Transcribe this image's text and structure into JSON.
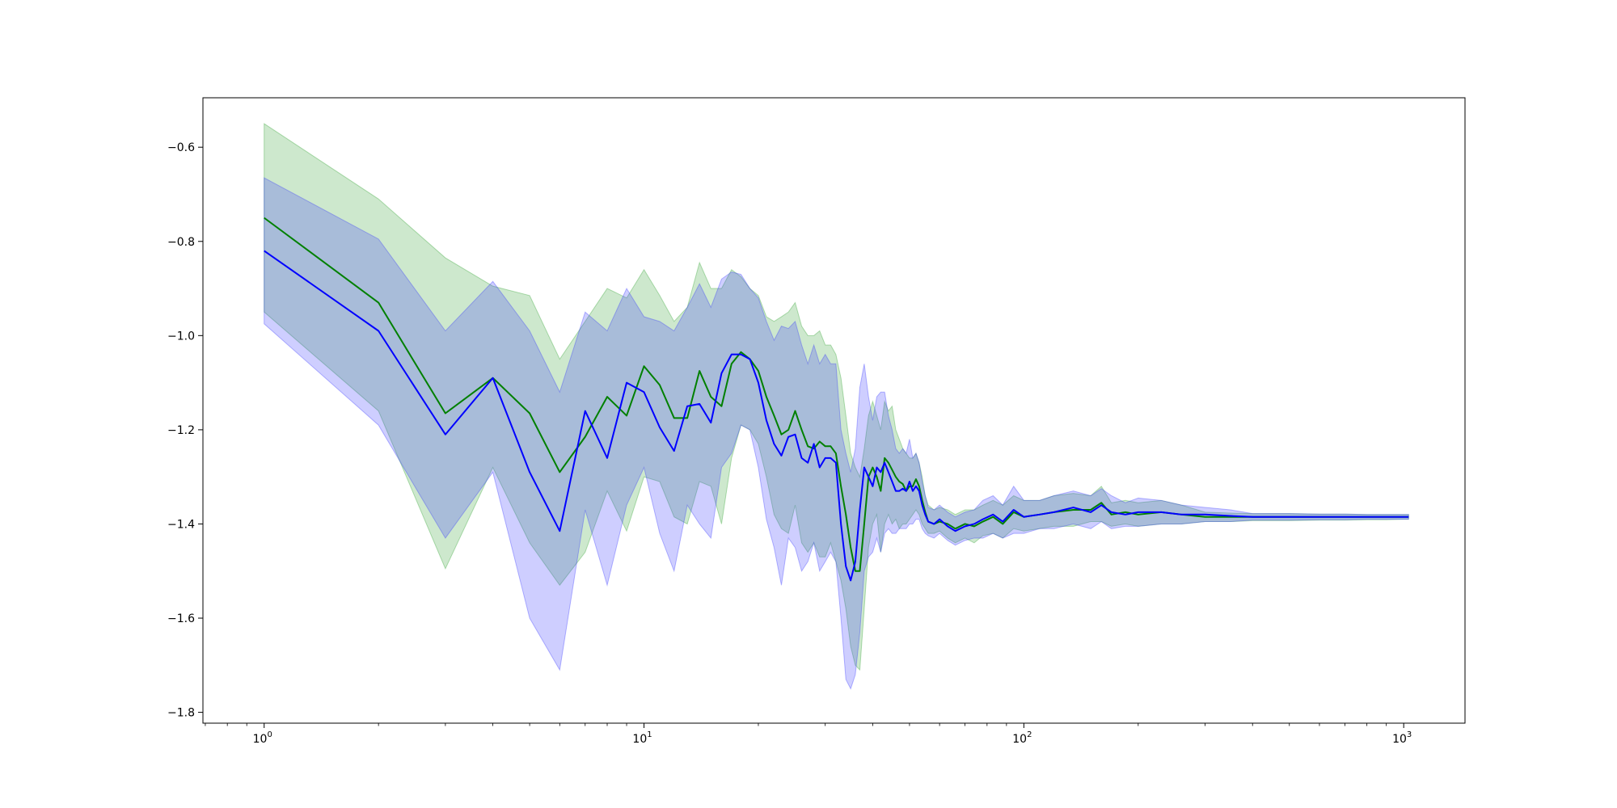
{
  "chart_data": {
    "type": "line",
    "title": "",
    "xlabel": "",
    "ylabel": "",
    "xscale": "log",
    "xlim": [
      0.69,
      1450
    ],
    "ylim": [
      -1.823,
      -0.495
    ],
    "grid": false,
    "x_ticks": [
      {
        "value": 1,
        "base": "10",
        "exp": "0"
      },
      {
        "value": 10,
        "base": "10",
        "exp": "1"
      },
      {
        "value": 100,
        "base": "10",
        "exp": "2"
      },
      {
        "value": 1000,
        "base": "10",
        "exp": "3"
      }
    ],
    "y_ticks": [
      {
        "value": -0.6,
        "label": "−0.6"
      },
      {
        "value": -0.8,
        "label": "−0.8"
      },
      {
        "value": -1.0,
        "label": "−1.0"
      },
      {
        "value": -1.2,
        "label": "−1.2"
      },
      {
        "value": -1.4,
        "label": "−1.4"
      },
      {
        "value": -1.6,
        "label": "−1.6"
      },
      {
        "value": -1.8,
        "label": "−1.8"
      }
    ],
    "series": [
      {
        "color": "#008000",
        "band_color": "#2ca02c",
        "band_alpha": 0.24,
        "x": [
          1,
          2,
          3,
          4,
          5,
          6,
          7,
          8,
          9,
          10,
          11,
          12,
          13,
          14,
          15,
          16,
          17,
          18,
          19,
          20,
          21,
          22,
          23,
          24,
          25,
          26,
          27,
          28,
          29,
          30,
          31,
          32,
          33,
          34,
          35,
          36,
          37,
          38,
          39,
          40,
          41,
          42,
          43,
          44,
          45,
          46,
          47,
          48,
          49,
          50,
          51,
          52,
          53,
          54,
          55,
          56,
          58,
          60,
          63,
          66,
          70,
          74,
          78,
          83,
          88,
          94,
          100,
          110,
          120,
          135,
          150,
          160,
          170,
          185,
          200,
          230,
          260,
          300,
          350,
          400,
          500,
          600,
          700,
          800,
          900,
          1000,
          1030
        ],
        "y": [
          -0.75,
          -0.93,
          -1.165,
          -1.09,
          -1.165,
          -1.29,
          -1.215,
          -1.13,
          -1.17,
          -1.065,
          -1.105,
          -1.175,
          -1.175,
          -1.075,
          -1.13,
          -1.15,
          -1.06,
          -1.035,
          -1.05,
          -1.075,
          -1.13,
          -1.17,
          -1.21,
          -1.2,
          -1.16,
          -1.2,
          -1.235,
          -1.24,
          -1.225,
          -1.235,
          -1.235,
          -1.25,
          -1.32,
          -1.38,
          -1.45,
          -1.5,
          -1.5,
          -1.4,
          -1.3,
          -1.28,
          -1.3,
          -1.33,
          -1.26,
          -1.27,
          -1.285,
          -1.3,
          -1.31,
          -1.315,
          -1.33,
          -1.32,
          -1.32,
          -1.305,
          -1.32,
          -1.35,
          -1.375,
          -1.395,
          -1.4,
          -1.395,
          -1.4,
          -1.41,
          -1.4,
          -1.405,
          -1.395,
          -1.385,
          -1.4,
          -1.375,
          -1.385,
          -1.38,
          -1.375,
          -1.37,
          -1.37,
          -1.355,
          -1.38,
          -1.375,
          -1.38,
          -1.375,
          -1.38,
          -1.385,
          -1.385,
          -1.385,
          -1.385,
          -1.385,
          -1.385,
          -1.385,
          -1.385,
          -1.385,
          -1.385
        ],
        "lower": [
          -0.95,
          -1.16,
          -1.495,
          -1.28,
          -1.44,
          -1.53,
          -1.46,
          -1.33,
          -1.415,
          -1.3,
          -1.31,
          -1.385,
          -1.4,
          -1.31,
          -1.32,
          -1.4,
          -1.26,
          -1.19,
          -1.2,
          -1.23,
          -1.3,
          -1.38,
          -1.41,
          -1.42,
          -1.36,
          -1.44,
          -1.46,
          -1.44,
          -1.47,
          -1.47,
          -1.44,
          -1.48,
          -1.52,
          -1.58,
          -1.66,
          -1.7,
          -1.71,
          -1.58,
          -1.45,
          -1.4,
          -1.38,
          -1.46,
          -1.4,
          -1.38,
          -1.4,
          -1.39,
          -1.41,
          -1.4,
          -1.4,
          -1.39,
          -1.38,
          -1.37,
          -1.38,
          -1.4,
          -1.41,
          -1.42,
          -1.42,
          -1.415,
          -1.43,
          -1.44,
          -1.43,
          -1.44,
          -1.425,
          -1.42,
          -1.43,
          -1.41,
          -1.415,
          -1.41,
          -1.405,
          -1.405,
          -1.395,
          -1.395,
          -1.405,
          -1.4,
          -1.405,
          -1.4,
          -1.4,
          -1.395,
          -1.395,
          -1.393,
          -1.393,
          -1.392,
          -1.392,
          -1.391,
          -1.391,
          -1.39,
          -1.39
        ],
        "upper": [
          -0.55,
          -0.71,
          -0.835,
          -0.895,
          -0.915,
          -1.05,
          -0.97,
          -0.9,
          -0.92,
          -0.86,
          -0.915,
          -0.97,
          -0.94,
          -0.845,
          -0.9,
          -0.9,
          -0.86,
          -0.875,
          -0.9,
          -0.915,
          -0.96,
          -0.97,
          -0.96,
          -0.95,
          -0.93,
          -0.98,
          -1.0,
          -1.0,
          -0.99,
          -1.02,
          -1.02,
          -1.04,
          -1.09,
          -1.17,
          -1.25,
          -1.28,
          -1.3,
          -1.24,
          -1.17,
          -1.14,
          -1.17,
          -1.2,
          -1.14,
          -1.16,
          -1.15,
          -1.2,
          -1.22,
          -1.24,
          -1.25,
          -1.26,
          -1.26,
          -1.25,
          -1.27,
          -1.3,
          -1.34,
          -1.36,
          -1.37,
          -1.365,
          -1.37,
          -1.38,
          -1.37,
          -1.37,
          -1.36,
          -1.35,
          -1.36,
          -1.34,
          -1.35,
          -1.35,
          -1.34,
          -1.335,
          -1.34,
          -1.32,
          -1.355,
          -1.35,
          -1.355,
          -1.35,
          -1.36,
          -1.375,
          -1.377,
          -1.378,
          -1.378,
          -1.379,
          -1.379,
          -1.38,
          -1.38,
          -1.38,
          -1.38
        ]
      },
      {
        "color": "#0000ff",
        "band_color": "#3333ff",
        "band_alpha": 0.24,
        "x": [
          1,
          2,
          3,
          4,
          5,
          6,
          7,
          8,
          9,
          10,
          11,
          12,
          13,
          14,
          15,
          16,
          17,
          18,
          19,
          20,
          21,
          22,
          23,
          24,
          25,
          26,
          27,
          28,
          29,
          30,
          31,
          32,
          33,
          34,
          35,
          36,
          37,
          38,
          39,
          40,
          41,
          42,
          43,
          44,
          45,
          46,
          47,
          48,
          49,
          50,
          51,
          52,
          53,
          54,
          55,
          56,
          58,
          60,
          63,
          66,
          70,
          74,
          78,
          83,
          88,
          94,
          100,
          110,
          120,
          135,
          150,
          160,
          170,
          185,
          200,
          230,
          260,
          300,
          350,
          400,
          500,
          600,
          700,
          800,
          900,
          1000,
          1030
        ],
        "y": [
          -0.82,
          -0.99,
          -1.21,
          -1.09,
          -1.29,
          -1.415,
          -1.16,
          -1.26,
          -1.1,
          -1.12,
          -1.195,
          -1.245,
          -1.15,
          -1.145,
          -1.185,
          -1.08,
          -1.04,
          -1.04,
          -1.05,
          -1.1,
          -1.18,
          -1.23,
          -1.255,
          -1.215,
          -1.21,
          -1.26,
          -1.27,
          -1.23,
          -1.28,
          -1.26,
          -1.26,
          -1.27,
          -1.4,
          -1.49,
          -1.52,
          -1.48,
          -1.37,
          -1.28,
          -1.3,
          -1.32,
          -1.28,
          -1.29,
          -1.27,
          -1.29,
          -1.31,
          -1.33,
          -1.33,
          -1.325,
          -1.33,
          -1.31,
          -1.33,
          -1.32,
          -1.33,
          -1.36,
          -1.38,
          -1.395,
          -1.4,
          -1.39,
          -1.405,
          -1.415,
          -1.405,
          -1.4,
          -1.39,
          -1.38,
          -1.395,
          -1.37,
          -1.385,
          -1.38,
          -1.375,
          -1.365,
          -1.375,
          -1.36,
          -1.375,
          -1.38,
          -1.375,
          -1.375,
          -1.38,
          -1.38,
          -1.383,
          -1.385,
          -1.385,
          -1.385,
          -1.385,
          -1.385,
          -1.385,
          -1.385,
          -1.385
        ],
        "lower": [
          -0.975,
          -1.19,
          -1.43,
          -1.29,
          -1.6,
          -1.71,
          -1.37,
          -1.53,
          -1.36,
          -1.28,
          -1.42,
          -1.5,
          -1.36,
          -1.4,
          -1.43,
          -1.28,
          -1.25,
          -1.19,
          -1.2,
          -1.28,
          -1.39,
          -1.45,
          -1.53,
          -1.43,
          -1.45,
          -1.5,
          -1.48,
          -1.44,
          -1.5,
          -1.48,
          -1.46,
          -1.48,
          -1.6,
          -1.73,
          -1.75,
          -1.72,
          -1.63,
          -1.5,
          -1.47,
          -1.46,
          -1.43,
          -1.46,
          -1.42,
          -1.41,
          -1.42,
          -1.42,
          -1.41,
          -1.41,
          -1.41,
          -1.4,
          -1.4,
          -1.39,
          -1.39,
          -1.41,
          -1.42,
          -1.425,
          -1.43,
          -1.42,
          -1.435,
          -1.445,
          -1.435,
          -1.43,
          -1.43,
          -1.42,
          -1.43,
          -1.42,
          -1.42,
          -1.41,
          -1.41,
          -1.4,
          -1.41,
          -1.395,
          -1.41,
          -1.405,
          -1.405,
          -1.4,
          -1.4,
          -1.395,
          -1.395,
          -1.392,
          -1.392,
          -1.391,
          -1.391,
          -1.39,
          -1.39,
          -1.39,
          -1.39
        ],
        "upper": [
          -0.665,
          -0.795,
          -0.99,
          -0.885,
          -0.99,
          -1.12,
          -0.95,
          -0.99,
          -0.9,
          -0.96,
          -0.97,
          -0.99,
          -0.94,
          -0.89,
          -0.94,
          -0.88,
          -0.865,
          -0.87,
          -0.9,
          -0.92,
          -0.97,
          -1.01,
          -0.98,
          -0.985,
          -0.97,
          -1.02,
          -1.06,
          -1.02,
          -1.06,
          -1.04,
          -1.06,
          -1.06,
          -1.2,
          -1.25,
          -1.29,
          -1.24,
          -1.11,
          -1.06,
          -1.13,
          -1.18,
          -1.13,
          -1.12,
          -1.12,
          -1.17,
          -1.2,
          -1.24,
          -1.25,
          -1.24,
          -1.25,
          -1.22,
          -1.26,
          -1.25,
          -1.27,
          -1.31,
          -1.34,
          -1.365,
          -1.37,
          -1.36,
          -1.375,
          -1.385,
          -1.375,
          -1.37,
          -1.35,
          -1.34,
          -1.36,
          -1.32,
          -1.35,
          -1.35,
          -1.34,
          -1.33,
          -1.34,
          -1.325,
          -1.34,
          -1.355,
          -1.345,
          -1.35,
          -1.36,
          -1.365,
          -1.37,
          -1.378,
          -1.378,
          -1.379,
          -1.379,
          -1.38,
          -1.38,
          -1.38,
          -1.38
        ]
      }
    ]
  }
}
